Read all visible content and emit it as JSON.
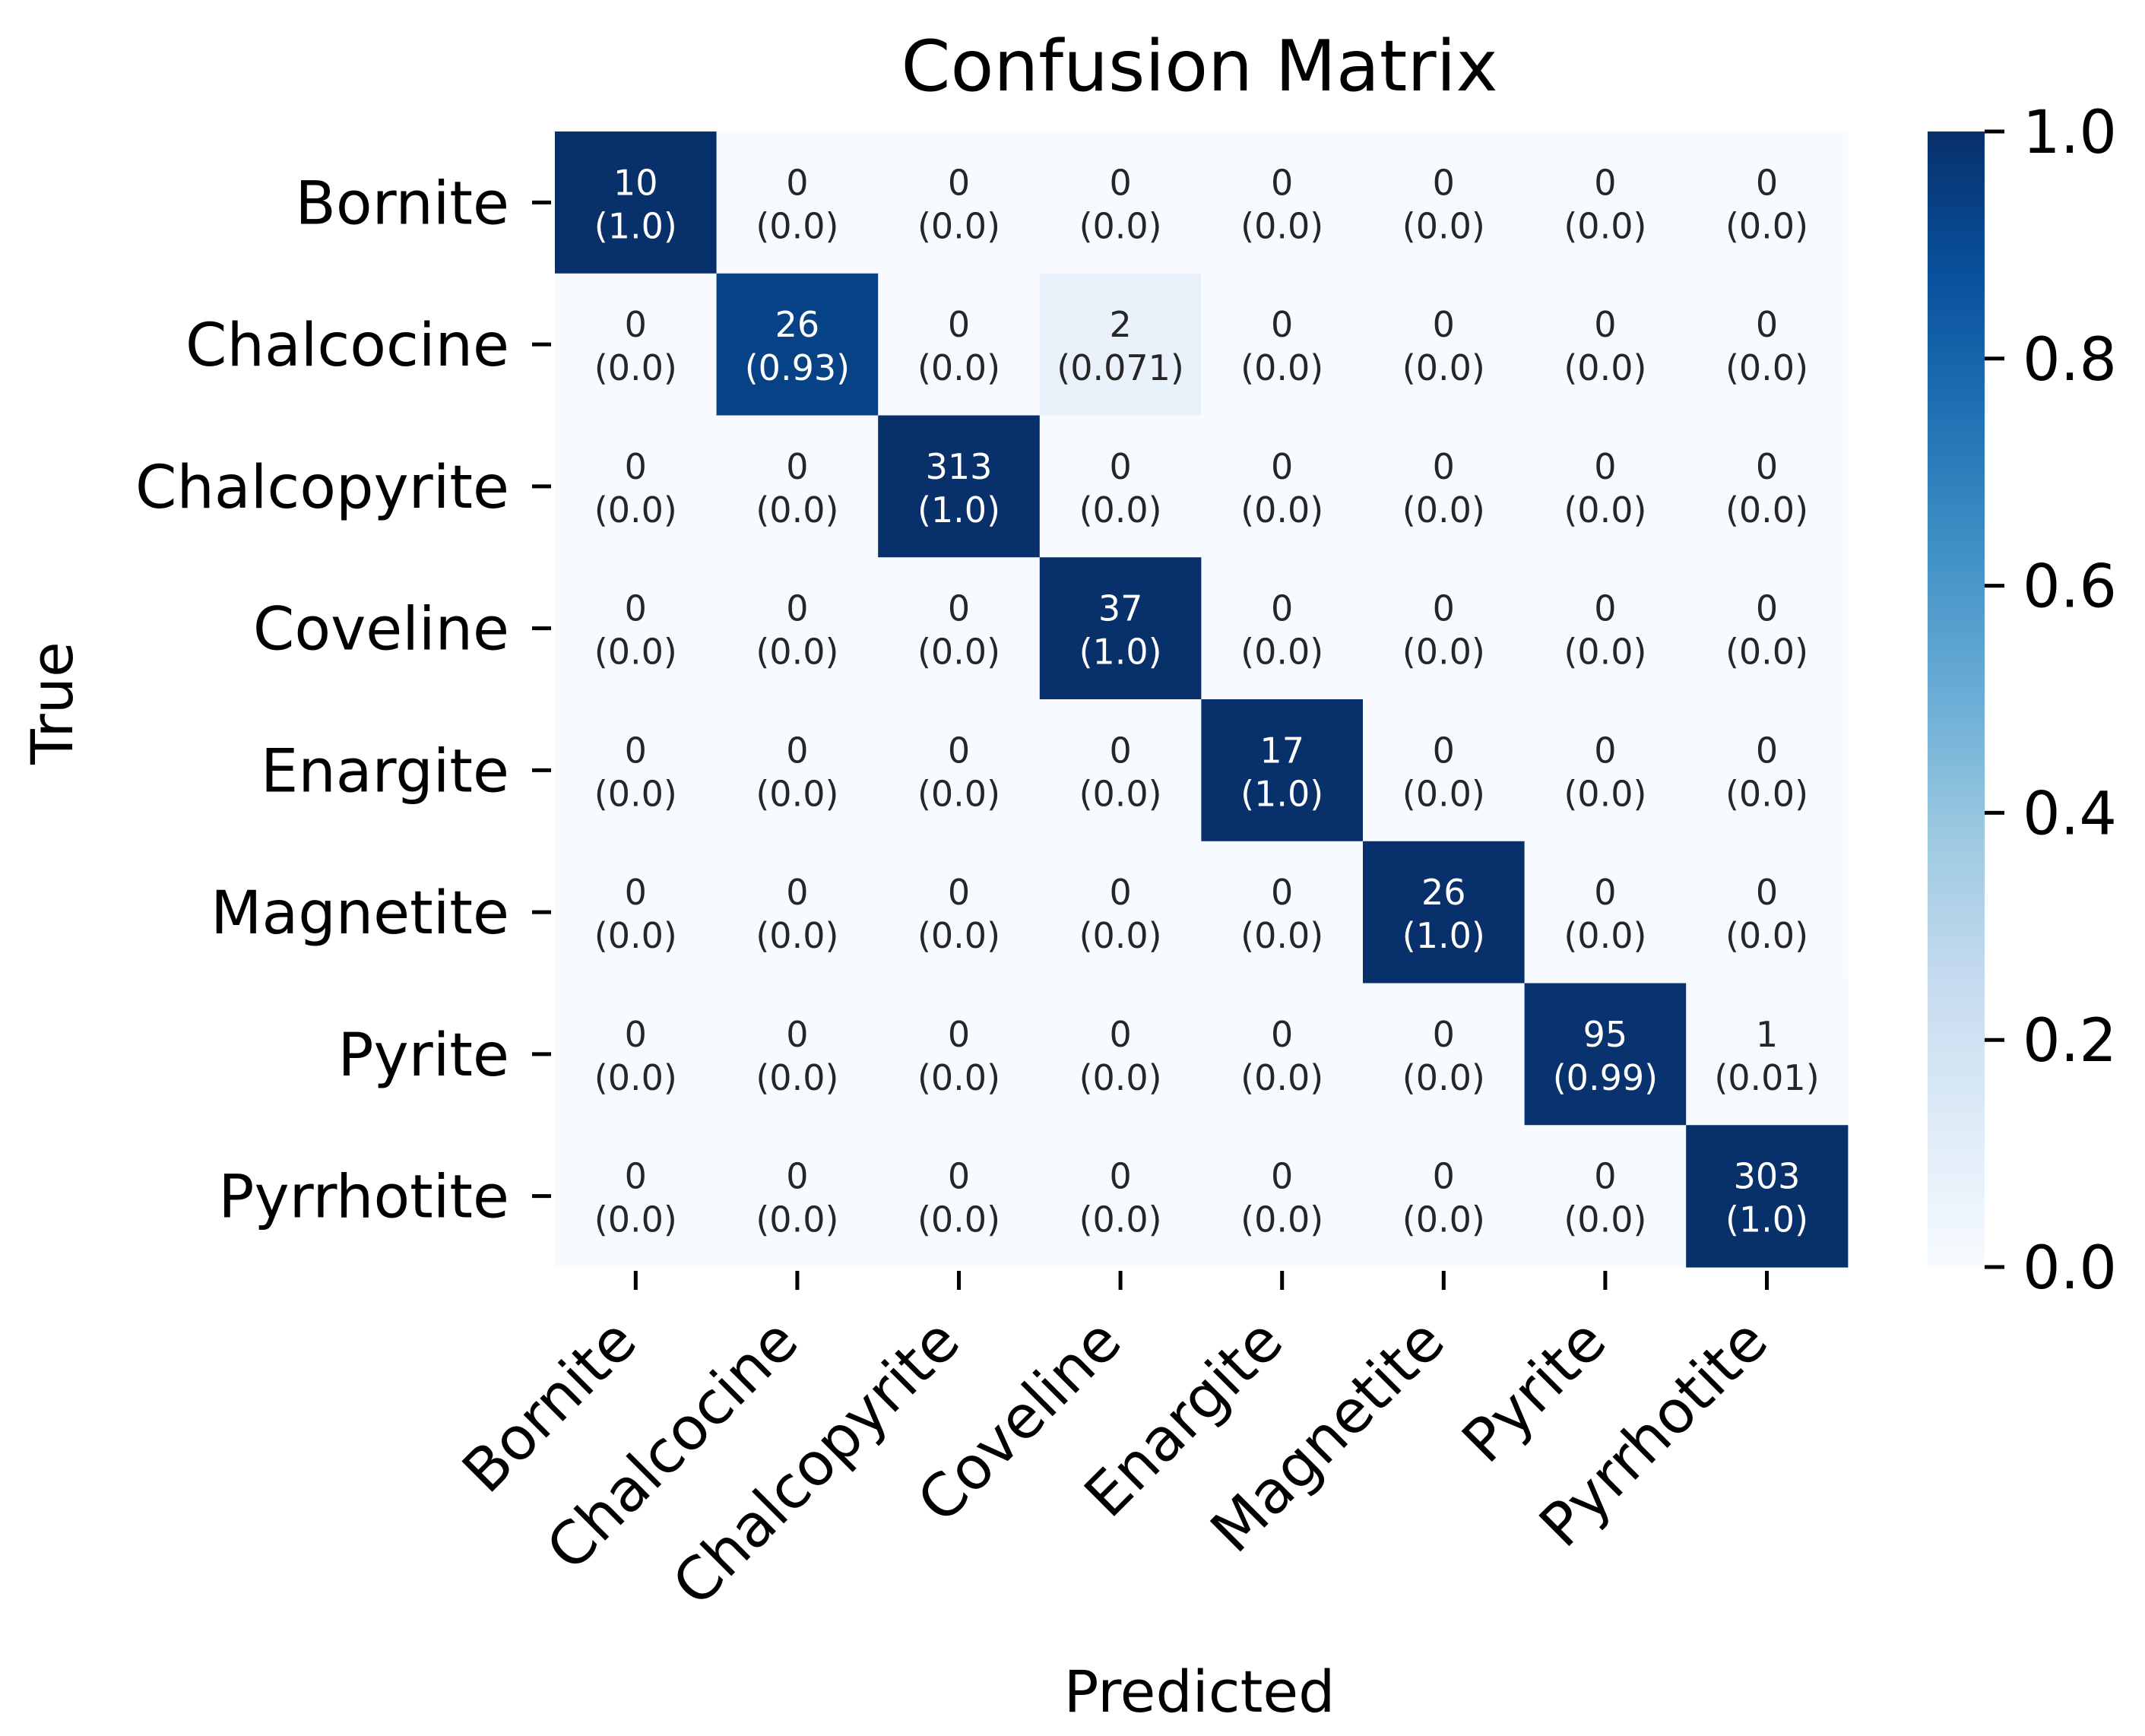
{
  "chart_data": {
    "type": "heatmap",
    "title": "Confusion Matrix",
    "xlabel": "Predicted",
    "ylabel": "True",
    "x_categories": [
      "Bornite",
      "Chalcocine",
      "Chalcopyrite",
      "Coveline",
      "Enargite",
      "Magnetite",
      "Pyrite",
      "Pyrrhotite"
    ],
    "y_categories": [
      "Bornite",
      "Chalcocine",
      "Chalcopyrite",
      "Coveline",
      "Enargite",
      "Magnetite",
      "Pyrite",
      "Pyrrhotite"
    ],
    "counts": [
      [
        10,
        0,
        0,
        0,
        0,
        0,
        0,
        0
      ],
      [
        0,
        26,
        0,
        2,
        0,
        0,
        0,
        0
      ],
      [
        0,
        0,
        313,
        0,
        0,
        0,
        0,
        0
      ],
      [
        0,
        0,
        0,
        37,
        0,
        0,
        0,
        0
      ],
      [
        0,
        0,
        0,
        0,
        17,
        0,
        0,
        0
      ],
      [
        0,
        0,
        0,
        0,
        0,
        26,
        0,
        0
      ],
      [
        0,
        0,
        0,
        0,
        0,
        0,
        95,
        1
      ],
      [
        0,
        0,
        0,
        0,
        0,
        0,
        0,
        303
      ]
    ],
    "normalized_labels": [
      [
        "1.0",
        "0.0",
        "0.0",
        "0.0",
        "0.0",
        "0.0",
        "0.0",
        "0.0"
      ],
      [
        "0.0",
        "0.93",
        "0.0",
        "0.071",
        "0.0",
        "0.0",
        "0.0",
        "0.0"
      ],
      [
        "0.0",
        "0.0",
        "1.0",
        "0.0",
        "0.0",
        "0.0",
        "0.0",
        "0.0"
      ],
      [
        "0.0",
        "0.0",
        "0.0",
        "1.0",
        "0.0",
        "0.0",
        "0.0",
        "0.0"
      ],
      [
        "0.0",
        "0.0",
        "0.0",
        "0.0",
        "1.0",
        "0.0",
        "0.0",
        "0.0"
      ],
      [
        "0.0",
        "0.0",
        "0.0",
        "0.0",
        "0.0",
        "1.0",
        "0.0",
        "0.0"
      ],
      [
        "0.0",
        "0.0",
        "0.0",
        "0.0",
        "0.0",
        "0.0",
        "0.99",
        "0.01"
      ],
      [
        "0.0",
        "0.0",
        "0.0",
        "0.0",
        "0.0",
        "0.0",
        "0.0",
        "1.0"
      ]
    ],
    "colorbar": {
      "colormap": "Blues",
      "range": [
        0.0,
        1.0
      ],
      "ticks": [
        "0.0",
        "0.2",
        "0.4",
        "0.6",
        "0.8",
        "1.0"
      ]
    }
  }
}
